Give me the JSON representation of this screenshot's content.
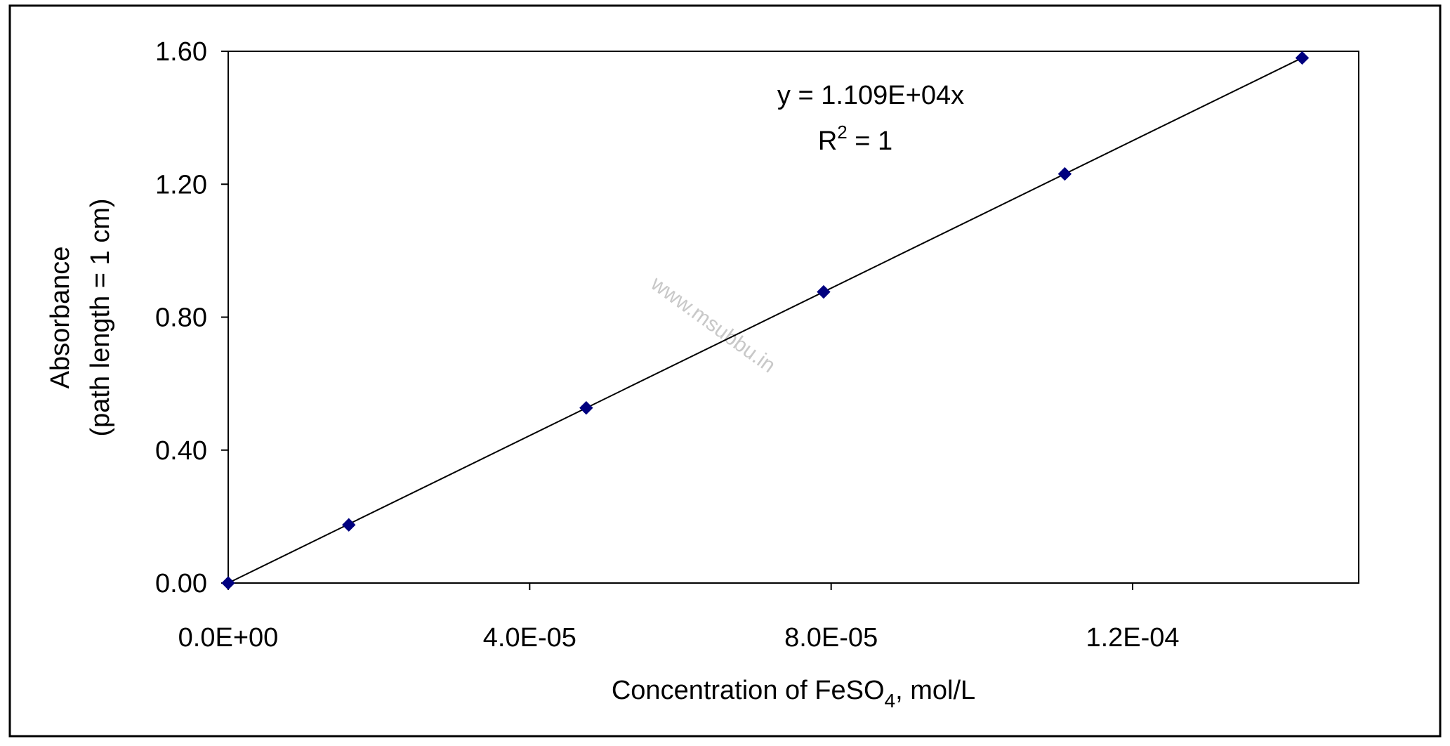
{
  "chart_data": {
    "type": "scatter",
    "title": "",
    "xlabel": "Concentration of FeSO",
    "xlabel_sub": "4",
    "xlabel_suffix": ", mol/L",
    "ylabel_line1": "Absorbance",
    "ylabel_line2": "(path length = 1 cm)",
    "xlim": [
      0,
      0.00015
    ],
    "ylim": [
      0,
      1.6
    ],
    "x_ticks": [
      0,
      4e-05,
      8e-05,
      0.00012
    ],
    "x_tick_labels": [
      "0.0E+00",
      "4.0E-05",
      "8.0E-05",
      "1.2E-04"
    ],
    "y_ticks": [
      0,
      0.4,
      0.8,
      1.2,
      1.6
    ],
    "y_tick_labels": [
      "0.00",
      "0.40",
      "0.80",
      "1.20",
      "1.60"
    ],
    "grid": false,
    "legend": "none",
    "marker_color": "#00007f",
    "line_color": "#000000",
    "series": [
      {
        "x": [
          0,
          1.6e-05,
          4.75e-05,
          7.9e-05,
          0.000111,
          0.0001425
        ],
        "y": [
          0,
          0.175,
          0.527,
          0.876,
          1.231,
          1.58
        ]
      }
    ],
    "trendline": {
      "slope": 11090,
      "intercept": 0
    },
    "equation": "y = 1.109E+04x",
    "r2_prefix": "R",
    "r2_sup": "2",
    "r2_suffix": " = 1",
    "watermark": "www.msubbu.in"
  }
}
